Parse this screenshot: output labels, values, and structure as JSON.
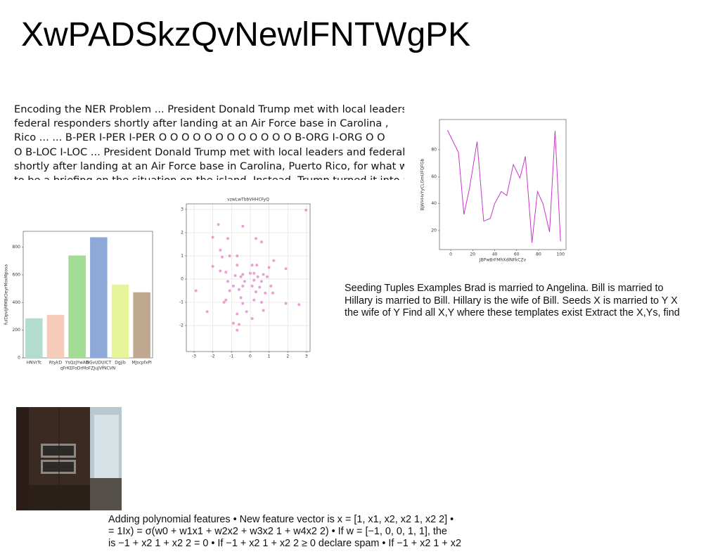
{
  "title": "XwPADSkzQvNewlFNTWgPK",
  "text_blocks": [
    {
      "lines": [
        "Encoding the NER Problem ... President Donald Trump met with local leaders",
        "federal responders shortly after landing at an Air Force base in Carolina ,",
        "Rico ... ... B-PER I-PER I-PER O O O O O O O O O O O O B-ORG I-ORG O O",
        "O B-LOC I-LOC ... President Donald Trump met with local leaders and federal",
        "shortly after landing at an Air Force base in Carolina, Puerto Rico, for what was",
        "to be a briefing on the situation on the island. Instead, Trump turned it into an"
      ]
    },
    {
      "lines": [
        "Seeding Tuples Examples Brad is married to Angelina. Bill is married to",
        "Hillary is married to Bill. Hillary is the wife of Bill. Seeds X is married to Y X",
        "the wife of Y Find all X,Y where these templates exist Extract the X,Ys, find"
      ]
    },
    {
      "lines": [
        "Adding polynomial features • New feature vector is x = [1, x1, x2, x2 1, x2 2] •",
        "= 1Ix) = σ(w0 + w1x1 + w2x2 + w3x2 1 + w4x2 2) • If w = [−1, 0, 0, 1, 1], the",
        "is −1 + x2 1 + x2 2 = 0 • If −1 + x2 1 + x2 2 ≥ 0 declare spam • If −1 + x2 1 + x2"
      ]
    }
  ],
  "charts": [
    {
      "type": "bar",
      "x_label": "qFrKEFoDrMoFZJuJVfNCVN",
      "y_label": "fuIDpvIjMMBrDeyrMoxMposa",
      "categories": [
        "HNVrTc",
        "RtykD",
        "YsQzjYwAD",
        "NGvUDUICT",
        "Dgjib",
        "MJscpfxPI"
      ],
      "values": [
        286,
        311,
        740,
        872,
        530,
        474
      ],
      "colors": [
        "#b3ddd0",
        "#f7cbb9",
        "#a2dc95",
        "#8ea8d8",
        "#e6f59a",
        "#bfa88f"
      ],
      "ylim": [
        0,
        915
      ],
      "yticks": [
        0,
        200,
        400,
        600,
        800
      ],
      "grid": false
    },
    {
      "type": "scatter",
      "title": "vzwLwTbbVHHCFyQ",
      "color": "#e377c2",
      "grid": true,
      "x": [
        2.97,
        -1.7,
        -0.4,
        -2.0,
        -1.2,
        0.3,
        0.6,
        -1.6,
        -1.1,
        -0.7,
        -1.5,
        1.25,
        -2.0,
        -0.7,
        0.1,
        0.35,
        1.0,
        1.9,
        -1.6,
        -1.3,
        -0.4,
        0.0,
        0.2,
        0.7,
        -0.8,
        -0.5,
        0.4,
        0.9,
        -1.2,
        -0.3,
        0.2,
        0.6,
        -0.9,
        -0.4,
        0.1,
        0.5,
        1.1,
        -1.1,
        -0.6,
        0.3,
        0.8,
        -2.9,
        -1.3,
        -0.5,
        0.2,
        0.6,
        1.2,
        -1.4,
        -0.4,
        0.7,
        1.9,
        2.6,
        -0.7,
        -2.3,
        -0.9,
        -0.6,
        -0.7,
        0.1,
        -0.2
      ],
      "y": [
        2.97,
        2.35,
        2.28,
        1.8,
        1.75,
        1.75,
        1.6,
        1.25,
        1.0,
        1.0,
        0.95,
        0.8,
        0.55,
        0.6,
        0.6,
        0.6,
        0.5,
        0.45,
        0.35,
        0.3,
        0.2,
        0.25,
        0.25,
        0.2,
        0.15,
        0.1,
        0.1,
        0.1,
        -0.1,
        -0.1,
        -0.05,
        -0.1,
        -0.3,
        -0.3,
        -0.3,
        -0.35,
        -0.3,
        -0.5,
        -0.45,
        -0.55,
        -0.6,
        -0.5,
        -0.9,
        -0.8,
        -0.9,
        -1.0,
        -0.6,
        -1.0,
        -1.05,
        -1.35,
        -1.05,
        -1.1,
        -1.5,
        -1.4,
        -1.9,
        -1.95,
        -2.2,
        -1.7,
        -1.4
      ],
      "xlim": [
        -3.41,
        3.19
      ],
      "xticks": [
        -3,
        -2,
        -1,
        0,
        1,
        2,
        3
      ],
      "ylim": [
        -3.12,
        3.24
      ],
      "yticks": [
        -2,
        -1,
        0,
        1,
        2,
        3
      ]
    },
    {
      "type": "line",
      "x_label": "JBPwBrFMhXdlNFkCZv",
      "y_label": "BjWHHvYyCLGmUFQFGb",
      "color": "#c837c8",
      "grid": false,
      "x": [
        -3,
        7,
        12,
        17,
        24,
        30,
        36,
        40,
        46,
        51,
        57,
        63,
        68,
        74,
        79,
        84,
        90,
        95,
        100
      ],
      "y": [
        94.5,
        78,
        32,
        51,
        86,
        27,
        29,
        40,
        49,
        46,
        69,
        59,
        75,
        11,
        49,
        40,
        19,
        94,
        12
      ],
      "xlim": [
        -10.3,
        105
      ],
      "xticks": [
        0,
        20,
        40,
        60,
        80,
        100
      ],
      "ylim": [
        5.9,
        102.4
      ],
      "yticks": [
        20,
        40,
        60,
        80
      ]
    }
  ]
}
